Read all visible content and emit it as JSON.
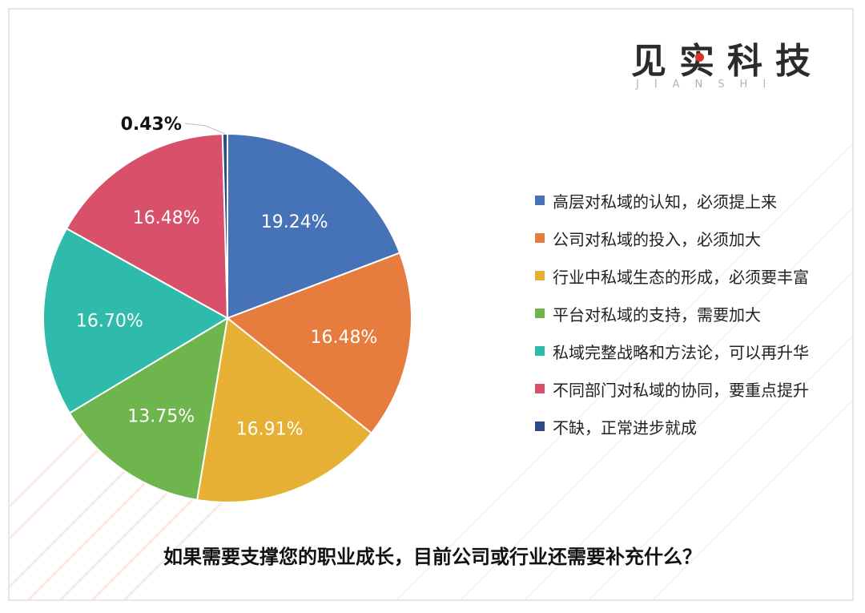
{
  "logo": {
    "main": "见实科技",
    "sub": "JIANSHI"
  },
  "question": "如果需要支撑您的职业成长，目前公司或行业还需要补充什么？",
  "chart_data": {
    "type": "pie",
    "title": "",
    "legend_position": "right",
    "slices": [
      {
        "label": "高层对私域的认知，必须提上来",
        "value": 19.24,
        "display": "19.24%",
        "color": "#4672b8"
      },
      {
        "label": "公司对私域的投入，必须加大",
        "value": 16.48,
        "display": "16.48%",
        "color": "#e67c3d"
      },
      {
        "label": "行业中私域生态的形成，必须要丰富",
        "value": 16.91,
        "display": "16.91%",
        "color": "#e5b033"
      },
      {
        "label": "平台对私域的支持，需要加大",
        "value": 13.75,
        "display": "13.75%",
        "color": "#6fb54d"
      },
      {
        "label": "私域完整战略和方法论，可以再升华",
        "value": 16.7,
        "display": "16.70%",
        "color": "#2fbbab"
      },
      {
        "label": "不同部门对私域的协同，要重点提升",
        "value": 16.48,
        "display": "16.48%",
        "color": "#d9506b"
      },
      {
        "label": "不缺，正常进步就成",
        "value": 0.43,
        "display": "0.43%",
        "color": "#2d4b86"
      }
    ]
  }
}
